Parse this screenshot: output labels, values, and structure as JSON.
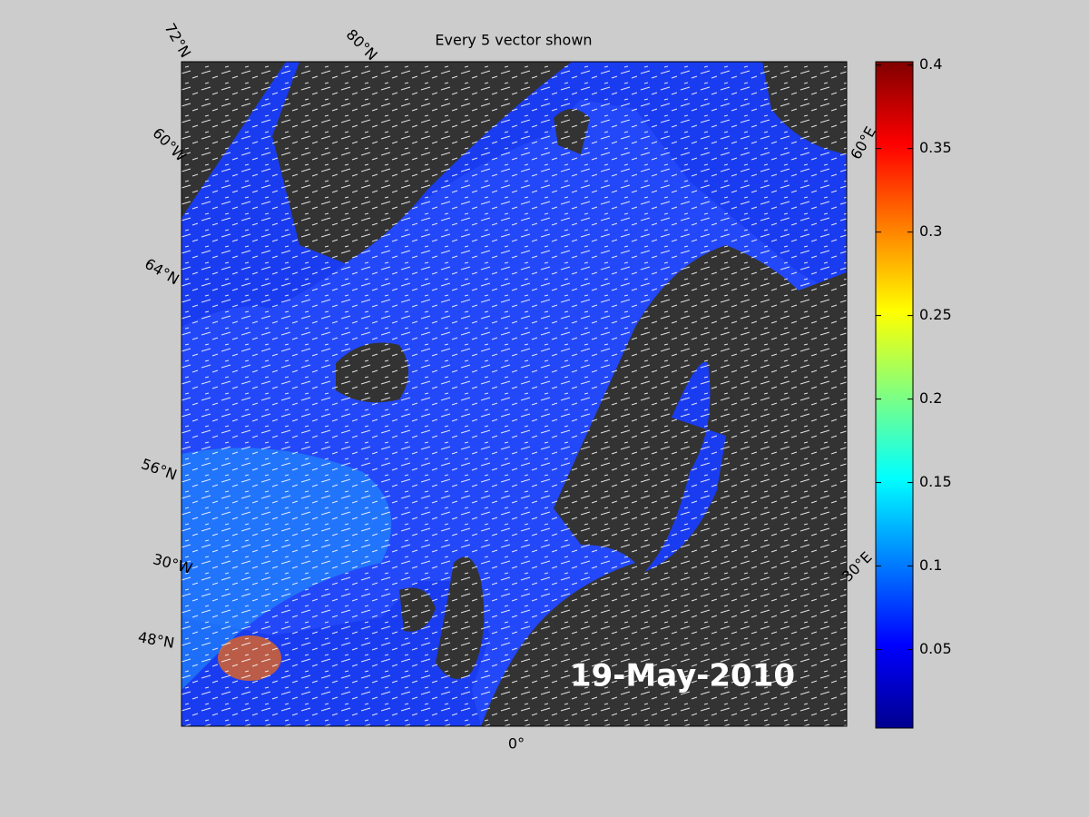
{
  "map": {
    "title": "Every 5 vector shown",
    "date": "19-May-2010",
    "graticule_labels": [
      "72°N",
      "80°N",
      "60°W",
      "64°N",
      "56°N",
      "30°W",
      "48°N",
      "60°E",
      "30°E",
      "0°"
    ],
    "colorbar": {
      "lim": [
        0.003,
        0.402
      ],
      "ticks": [
        0.05,
        0.1,
        0.15,
        0.2,
        0.25,
        0.3,
        0.35,
        0.4
      ],
      "colormap": [
        "#00008f",
        "#0000ff",
        "#0080ff",
        "#00ffff",
        "#80ff80",
        "#ffff00",
        "#ff8000",
        "#ff0000",
        "#800000"
      ]
    }
  }
}
